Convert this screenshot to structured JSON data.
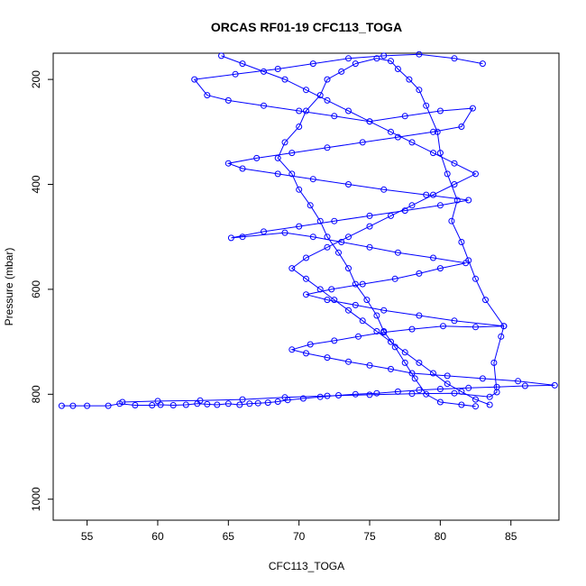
{
  "chart_data": {
    "type": "scatter",
    "title": "ORCAS RF01-19 CFC113_TOGA",
    "xlabel": "CFC113_TOGA",
    "ylabel": "Pressure (mbar)",
    "xlim": [
      52.6,
      88.4
    ],
    "ylim": [
      1040,
      150
    ],
    "y_reversed": true,
    "x_ticks": [
      55,
      60,
      65,
      70,
      75,
      80,
      85
    ],
    "y_ticks": [
      200,
      400,
      600,
      800,
      1000
    ],
    "grid": false,
    "legend": "none",
    "marker": "open-circle",
    "line_connected": true,
    "series_color": "#0000ff",
    "series": [
      {
        "points": [
          [
            53.2,
            822
          ],
          [
            54.0,
            822
          ],
          [
            55.0,
            822
          ],
          [
            56.5,
            822
          ],
          [
            57.3,
            818
          ],
          [
            58.4,
            821
          ],
          [
            59.6,
            821
          ],
          [
            60.2,
            820
          ],
          [
            61.1,
            821
          ],
          [
            62.0,
            820
          ],
          [
            62.8,
            818
          ],
          [
            63.5,
            819
          ],
          [
            64.2,
            820
          ],
          [
            65.0,
            818
          ],
          [
            65.8,
            820
          ],
          [
            66.5,
            818
          ],
          [
            67.1,
            817
          ],
          [
            67.8,
            816
          ],
          [
            68.5,
            814
          ],
          [
            69.2,
            811
          ],
          [
            70.3,
            808
          ],
          [
            71.5,
            805
          ],
          [
            72.8,
            802
          ],
          [
            74.0,
            800
          ],
          [
            75.5,
            798
          ],
          [
            77.0,
            795
          ],
          [
            78.5,
            792
          ],
          [
            80.0,
            790
          ],
          [
            82.0,
            788
          ],
          [
            84.0,
            786
          ],
          [
            86.0,
            784
          ],
          [
            88.1,
            783
          ],
          [
            85.5,
            775
          ],
          [
            83.0,
            770
          ],
          [
            80.5,
            765
          ],
          [
            78.0,
            760
          ],
          [
            76.5,
            752
          ],
          [
            75.0,
            745
          ],
          [
            73.5,
            738
          ],
          [
            72.0,
            730
          ],
          [
            70.5,
            722
          ],
          [
            69.5,
            715
          ],
          [
            70.8,
            705
          ],
          [
            72.5,
            698
          ],
          [
            74.2,
            690
          ],
          [
            76.0,
            682
          ],
          [
            78.0,
            676
          ],
          [
            80.2,
            670
          ],
          [
            82.5,
            672
          ],
          [
            84.5,
            670
          ],
          [
            81.0,
            660
          ],
          [
            78.5,
            650
          ],
          [
            76.0,
            640
          ],
          [
            74.0,
            630
          ],
          [
            72.0,
            620
          ],
          [
            70.5,
            610
          ],
          [
            72.3,
            600
          ],
          [
            74.5,
            590
          ],
          [
            76.8,
            580
          ],
          [
            78.5,
            570
          ],
          [
            80.0,
            560
          ],
          [
            81.8,
            550
          ],
          [
            79.5,
            540
          ],
          [
            77.0,
            530
          ],
          [
            75.0,
            520
          ],
          [
            73.0,
            510
          ],
          [
            71.0,
            500
          ],
          [
            69.0,
            492
          ],
          [
            66.0,
            500
          ],
          [
            65.2,
            502
          ],
          [
            67.5,
            490
          ],
          [
            70.0,
            480
          ],
          [
            72.5,
            470
          ],
          [
            75.0,
            460
          ],
          [
            77.5,
            450
          ],
          [
            80.0,
            440
          ],
          [
            82.0,
            430
          ],
          [
            79.0,
            420
          ],
          [
            76.0,
            410
          ],
          [
            73.5,
            400
          ],
          [
            71.0,
            390
          ],
          [
            68.5,
            380
          ],
          [
            66.0,
            370
          ],
          [
            65.0,
            360
          ],
          [
            67.0,
            350
          ],
          [
            69.5,
            340
          ],
          [
            72.0,
            330
          ],
          [
            74.5,
            320
          ],
          [
            77.0,
            310
          ],
          [
            79.5,
            300
          ],
          [
            81.5,
            290
          ],
          [
            82.3,
            255
          ],
          [
            80.0,
            260
          ],
          [
            77.5,
            270
          ],
          [
            75.0,
            280
          ],
          [
            72.5,
            270
          ],
          [
            70.0,
            260
          ],
          [
            67.5,
            250
          ],
          [
            65.0,
            240
          ],
          [
            63.5,
            230
          ],
          [
            62.6,
            200
          ],
          [
            65.5,
            190
          ],
          [
            68.5,
            180
          ],
          [
            71.0,
            170
          ],
          [
            73.5,
            160
          ],
          [
            76.0,
            155
          ],
          [
            78.5,
            152
          ],
          [
            81.0,
            160
          ],
          [
            83.0,
            170
          ]
        ]
      },
      {
        "points": [
          [
            57.5,
            815
          ],
          [
            60.0,
            813
          ],
          [
            63.0,
            812
          ],
          [
            66.0,
            810
          ],
          [
            69.0,
            806
          ],
          [
            72.0,
            803
          ],
          [
            75.0,
            801
          ],
          [
            78.0,
            799
          ],
          [
            81.0,
            798
          ],
          [
            83.5,
            805
          ],
          [
            84.0,
            796
          ],
          [
            83.8,
            740
          ],
          [
            84.3,
            690
          ],
          [
            84.5,
            670
          ],
          [
            83.2,
            620
          ],
          [
            82.5,
            580
          ],
          [
            82.0,
            545
          ],
          [
            81.5,
            510
          ],
          [
            80.8,
            470
          ],
          [
            81.2,
            430
          ],
          [
            80.5,
            380
          ],
          [
            80.0,
            340
          ],
          [
            79.8,
            300
          ],
          [
            79.0,
            250
          ],
          [
            78.5,
            220
          ],
          [
            77.8,
            200
          ],
          [
            77.0,
            180
          ],
          [
            76.5,
            165
          ],
          [
            75.5,
            160
          ],
          [
            74.0,
            170
          ],
          [
            73.0,
            185
          ],
          [
            72.0,
            200
          ],
          [
            71.5,
            230
          ],
          [
            70.5,
            260
          ],
          [
            70.0,
            290
          ],
          [
            69.0,
            320
          ],
          [
            68.5,
            350
          ],
          [
            69.5,
            380
          ],
          [
            70.0,
            410
          ],
          [
            70.8,
            440
          ],
          [
            71.5,
            470
          ],
          [
            72.0,
            500
          ],
          [
            72.8,
            530
          ],
          [
            73.5,
            560
          ],
          [
            74.0,
            590
          ],
          [
            74.8,
            620
          ],
          [
            75.5,
            650
          ],
          [
            76.0,
            680
          ],
          [
            76.8,
            710
          ],
          [
            77.5,
            740
          ],
          [
            78.2,
            770
          ],
          [
            79.0,
            800
          ],
          [
            80.0,
            815
          ],
          [
            82.5,
            823
          ],
          [
            81.5,
            820
          ]
        ]
      },
      {
        "points": [
          [
            64.5,
            155
          ],
          [
            66.0,
            170
          ],
          [
            67.5,
            185
          ],
          [
            69.0,
            200
          ],
          [
            70.5,
            220
          ],
          [
            72.0,
            240
          ],
          [
            73.5,
            260
          ],
          [
            75.0,
            280
          ],
          [
            76.5,
            300
          ],
          [
            78.0,
            320
          ],
          [
            79.5,
            340
          ],
          [
            81.0,
            360
          ],
          [
            82.5,
            380
          ],
          [
            81.0,
            400
          ],
          [
            79.5,
            420
          ],
          [
            78.0,
            440
          ],
          [
            76.5,
            460
          ],
          [
            75.0,
            480
          ],
          [
            73.5,
            500
          ],
          [
            72.0,
            520
          ],
          [
            70.5,
            540
          ],
          [
            69.5,
            560
          ],
          [
            70.5,
            580
          ],
          [
            71.5,
            600
          ],
          [
            72.5,
            620
          ],
          [
            73.5,
            640
          ],
          [
            74.5,
            660
          ],
          [
            75.5,
            680
          ],
          [
            76.5,
            700
          ],
          [
            77.5,
            720
          ],
          [
            78.5,
            740
          ],
          [
            79.5,
            760
          ],
          [
            80.5,
            780
          ],
          [
            81.5,
            795
          ],
          [
            82.5,
            810
          ],
          [
            83.5,
            820
          ]
        ]
      }
    ]
  }
}
